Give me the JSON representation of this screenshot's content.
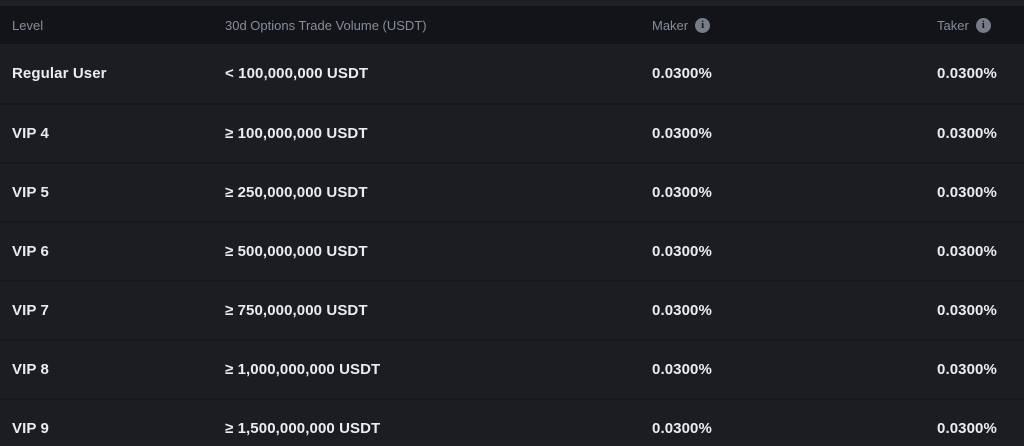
{
  "table": {
    "columns": [
      {
        "key": "level",
        "label": "Level",
        "has_info": false
      },
      {
        "key": "volume",
        "label": "30d Options Trade Volume (USDT)",
        "has_info": false
      },
      {
        "key": "maker",
        "label": "Maker",
        "has_info": true
      },
      {
        "key": "taker",
        "label": "Taker",
        "has_info": true
      }
    ],
    "info_icon_glyph": "i",
    "rows": [
      {
        "level": "Regular User",
        "volume": "< 100,000,000 USDT",
        "maker": "0.0300%",
        "taker": "0.0300%"
      },
      {
        "level": "VIP 4",
        "volume": "≥ 100,000,000 USDT",
        "maker": "0.0300%",
        "taker": "0.0300%"
      },
      {
        "level": "VIP 5",
        "volume": "≥ 250,000,000 USDT",
        "maker": "0.0300%",
        "taker": "0.0300%"
      },
      {
        "level": "VIP 6",
        "volume": "≥ 500,000,000 USDT",
        "maker": "0.0300%",
        "taker": "0.0300%"
      },
      {
        "level": "VIP 7",
        "volume": "≥ 750,000,000 USDT",
        "maker": "0.0300%",
        "taker": "0.0300%"
      },
      {
        "level": "VIP 8",
        "volume": "≥ 1,000,000,000 USDT",
        "maker": "0.0300%",
        "taker": "0.0300%"
      },
      {
        "level": "VIP 9",
        "volume": "≥ 1,500,000,000 USDT",
        "maker": "0.0300%",
        "taker": "0.0300%"
      }
    ]
  },
  "colors": {
    "page_background": "#1e2026",
    "header_background": "#131418",
    "row_background": "#1b1d23",
    "row_divider": "#15171b",
    "header_text": "#848e9c",
    "body_text": "#eaecef",
    "info_icon_background": "#767d89"
  }
}
